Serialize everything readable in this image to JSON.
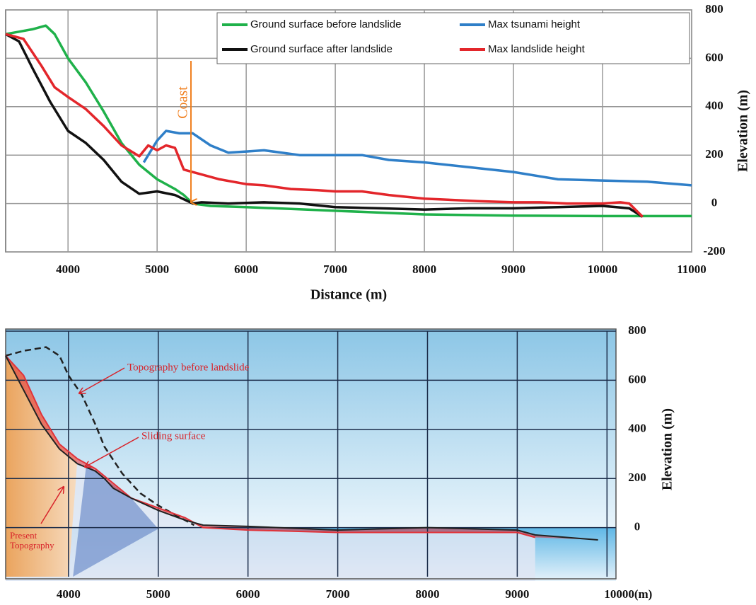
{
  "chart_data": [
    {
      "type": "line",
      "xlabel": "Distance (m)",
      "ylabel": "Elevation (m)",
      "xlim": [
        3300,
        11000
      ],
      "xticks": [
        4000,
        5000,
        6000,
        7000,
        8000,
        9000,
        10000,
        11000
      ],
      "ylim": [
        -200,
        800
      ],
      "yticks": [
        -200,
        0,
        200,
        400,
        600,
        800
      ],
      "grid": true,
      "legend": "top-right",
      "annotations": [
        {
          "text": "Coast",
          "x": 5380,
          "color": "#f07f1e"
        }
      ],
      "series": [
        {
          "name": "Ground surface before landslide",
          "color": "#1fb14a",
          "x": [
            3300,
            3450,
            3600,
            3750,
            3850,
            4000,
            4200,
            4400,
            4600,
            4800,
            5000,
            5200,
            5300,
            5400,
            5600,
            6000,
            7000,
            8000,
            9000,
            10000,
            11000
          ],
          "values": [
            700,
            710,
            720,
            735,
            700,
            600,
            500,
            380,
            250,
            160,
            100,
            60,
            35,
            0,
            -10,
            -15,
            -30,
            -45,
            -50,
            -52,
            -52
          ]
        },
        {
          "name": "Max tsunami height",
          "color": "#2f7fc8",
          "x": [
            4850,
            5000,
            5100,
            5250,
            5400,
            5600,
            5800,
            6000,
            6200,
            6600,
            7000,
            7300,
            7600,
            8000,
            8500,
            9000,
            9500,
            10000,
            10500,
            11000
          ],
          "values": [
            170,
            260,
            300,
            290,
            290,
            240,
            210,
            215,
            220,
            200,
            200,
            200,
            180,
            170,
            150,
            130,
            100,
            95,
            90,
            75
          ]
        },
        {
          "name": "Ground surface after landslide",
          "color": "#111111",
          "x": [
            3300,
            3450,
            3600,
            3800,
            4000,
            4200,
            4400,
            4600,
            4800,
            5000,
            5200,
            5400,
            5500,
            5800,
            6200,
            6600,
            7000,
            7500,
            8000,
            8500,
            9000,
            9500,
            10000,
            10300,
            10450
          ],
          "values": [
            700,
            670,
            560,
            420,
            300,
            250,
            180,
            90,
            40,
            50,
            35,
            0,
            5,
            0,
            5,
            0,
            -15,
            -20,
            -25,
            -20,
            -20,
            -15,
            -10,
            -20,
            -55
          ]
        },
        {
          "name": "Max landslide height",
          "color": "#e3262b",
          "x": [
            3300,
            3400,
            3500,
            3700,
            3850,
            4000,
            4200,
            4400,
            4600,
            4800,
            4900,
            5000,
            5100,
            5200,
            5300,
            5500,
            5700,
            6000,
            6200,
            6500,
            6800,
            7000,
            7300,
            7600,
            8000,
            8300,
            8600,
            9000,
            9300,
            9600,
            10000,
            10200,
            10300,
            10450
          ],
          "values": [
            700,
            690,
            680,
            570,
            480,
            440,
            390,
            320,
            240,
            195,
            240,
            220,
            240,
            230,
            140,
            120,
            100,
            80,
            75,
            60,
            55,
            50,
            50,
            35,
            20,
            15,
            10,
            5,
            5,
            0,
            0,
            5,
            0,
            -55
          ]
        }
      ]
    },
    {
      "type": "profile",
      "ylabel": "Elevation (m)",
      "xlim": [
        3300,
        10100
      ],
      "xticks": [
        4000,
        5000,
        6000,
        7000,
        8000,
        9000,
        {
          "value": 10000,
          "label": "10000(m)"
        }
      ],
      "ylim": [
        -200,
        800
      ],
      "yticks": [
        0,
        200,
        400,
        600,
        800
      ],
      "grid": true,
      "annotations": [
        {
          "text": "Topography before landslide"
        },
        {
          "text": "Sliding surface"
        },
        {
          "text": "Present Topography"
        }
      ],
      "series": [
        {
          "color": "#222222",
          "dash": true,
          "x": [
            3300,
            3500,
            3750,
            3900,
            4000,
            4150,
            4300,
            4400,
            4600,
            4800,
            5000,
            5200,
            5400
          ],
          "values": [
            700,
            720,
            735,
            700,
            620,
            540,
            420,
            330,
            220,
            140,
            90,
            50,
            10
          ]
        },
        {
          "color": "#e0333a",
          "x": [
            3300,
            3500,
            3700,
            3900,
            4100,
            4300,
            4500,
            4700,
            5000,
            5300,
            5500,
            6000,
            7000,
            8000,
            9000,
            9200
          ],
          "values": [
            700,
            620,
            460,
            340,
            280,
            240,
            180,
            120,
            80,
            40,
            0,
            -10,
            -20,
            -20,
            -20,
            -40
          ]
        },
        {
          "color": "#222222",
          "x": [
            3300,
            3500,
            3700,
            3900,
            4100,
            4300,
            4400,
            4500,
            4700,
            5000,
            5300,
            5500,
            6000,
            7000,
            8000,
            9000,
            9200,
            9900
          ],
          "values": [
            700,
            560,
            420,
            320,
            260,
            230,
            200,
            160,
            120,
            70,
            30,
            10,
            5,
            -10,
            0,
            -10,
            -30,
            -50
          ]
        }
      ]
    }
  ]
}
